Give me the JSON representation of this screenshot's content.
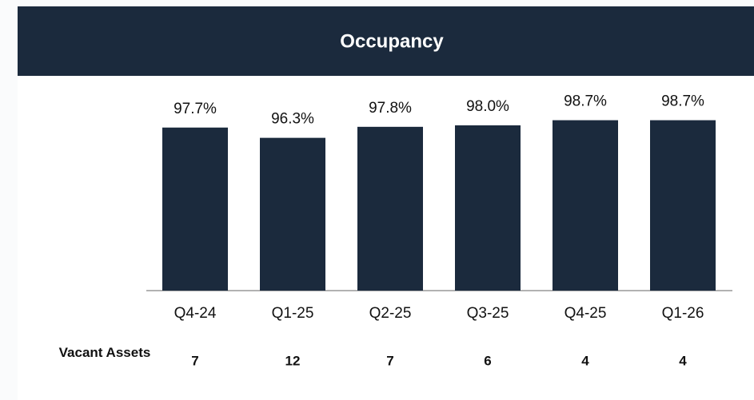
{
  "chart_data": {
    "type": "bar",
    "title": "Occupancy",
    "categories": [
      "Q4-24",
      "Q1-25",
      "Q2-25",
      "Q3-25",
      "Q4-25",
      "Q1-26"
    ],
    "values": [
      97.7,
      96.3,
      97.8,
      98.0,
      98.7,
      98.7
    ],
    "value_labels": [
      "97.7%",
      "96.3%",
      "97.8%",
      "98.0%",
      "98.7%",
      "98.7%"
    ],
    "color": "#1b2a3d",
    "ylim": [
      75.5,
      100
    ],
    "grid": false,
    "vacant_assets": {
      "label": "Vacant Assets",
      "values": [
        7,
        12,
        7,
        6,
        4,
        4
      ]
    }
  }
}
